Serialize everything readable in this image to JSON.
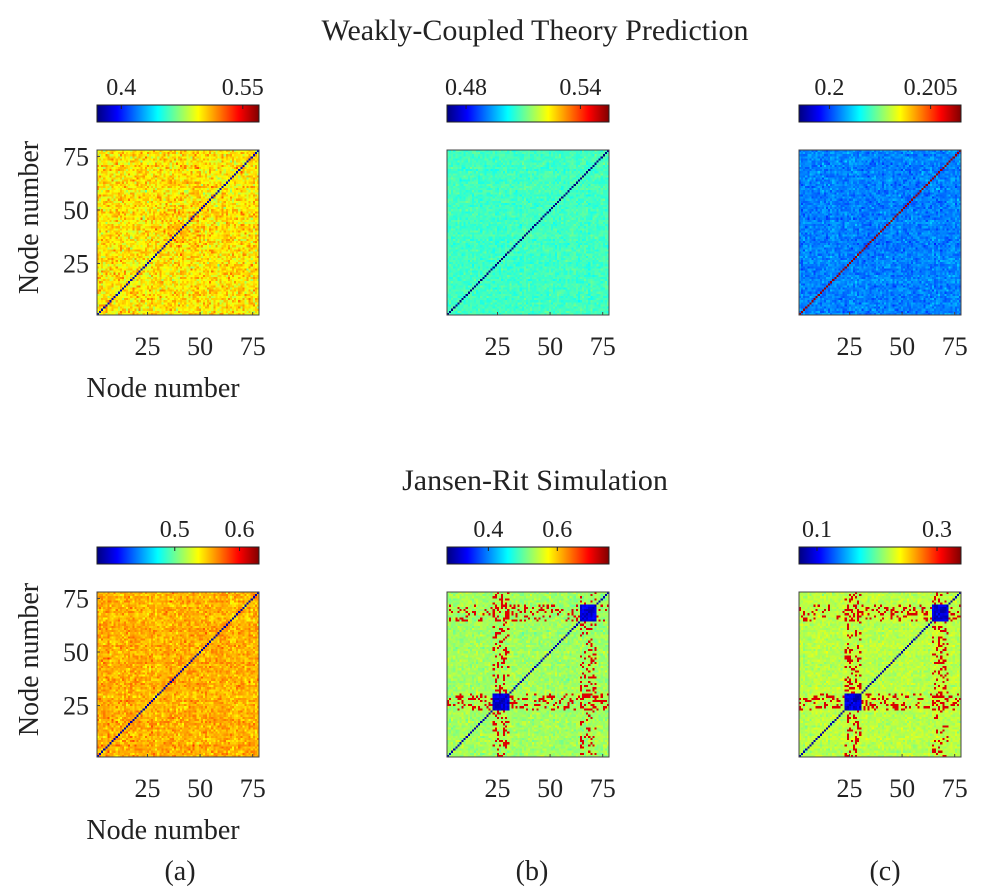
{
  "figure": {
    "row_titles": [
      "Weakly-Coupled Theory Prediction",
      "Jansen-Rit Simulation"
    ],
    "panel_labels": [
      "(a)",
      "(b)",
      "(c)"
    ],
    "axis_label": "Node number",
    "colormap": "jet",
    "colormap_stops": [
      "#00007f",
      "#0000ff",
      "#0080ff",
      "#00ffff",
      "#80ff80",
      "#ffff00",
      "#ff8000",
      "#ff0000",
      "#7f0000"
    ],
    "panel_border_color": "#444444"
  },
  "chart_data": [
    {
      "type": "heatmap",
      "row": 0,
      "col": 0,
      "x_ticks": [
        25,
        50,
        75
      ],
      "y_ticks": [
        25,
        50,
        75
      ],
      "xlim": [
        1,
        78
      ],
      "ylim": [
        1,
        78
      ],
      "colorbar": {
        "ticks": [
          0.4,
          0.55
        ],
        "range": [
          0.37,
          0.57
        ]
      },
      "xlabel": "Node number",
      "ylabel": "Node number",
      "pattern": {
        "base": 0.5,
        "noise": 0.035,
        "diagonal": 0.38,
        "blocks": []
      }
    },
    {
      "type": "heatmap",
      "row": 0,
      "col": 1,
      "x_ticks": [
        25,
        50,
        75
      ],
      "y_ticks": [],
      "xlim": [
        1,
        78
      ],
      "ylim": [
        1,
        78
      ],
      "colorbar": {
        "ticks": [
          0.48,
          0.54
        ],
        "range": [
          0.47,
          0.555
        ]
      },
      "xlabel": "",
      "ylabel": "",
      "pattern": {
        "base": 0.507,
        "noise": 0.006,
        "diagonal": 0.47,
        "blocks": []
      }
    },
    {
      "type": "heatmap",
      "row": 0,
      "col": 2,
      "x_ticks": [
        25,
        50,
        75
      ],
      "y_ticks": [],
      "xlim": [
        1,
        78
      ],
      "ylim": [
        1,
        78
      ],
      "colorbar": {
        "ticks": [
          0.2,
          0.205
        ],
        "range": [
          0.1985,
          0.2065
        ]
      },
      "xlabel": "",
      "ylabel": "",
      "pattern": {
        "base": 0.2005,
        "noise": 0.0008,
        "diagonal": 0.2063,
        "blocks": []
      }
    },
    {
      "type": "heatmap",
      "row": 1,
      "col": 0,
      "x_ticks": [
        25,
        50,
        75
      ],
      "y_ticks": [
        25,
        50,
        75
      ],
      "xlim": [
        1,
        78
      ],
      "ylim": [
        1,
        78
      ],
      "colorbar": {
        "ticks": [
          0.5,
          0.6
        ],
        "range": [
          0.38,
          0.63
        ]
      },
      "xlabel": "Node number",
      "ylabel": "Node number",
      "pattern": {
        "base": 0.555,
        "noise": 0.03,
        "diagonal": 0.39,
        "blocks": []
      }
    },
    {
      "type": "heatmap",
      "row": 1,
      "col": 1,
      "x_ticks": [
        25,
        50,
        75
      ],
      "y_ticks": [],
      "xlim": [
        1,
        78
      ],
      "ylim": [
        1,
        78
      ],
      "colorbar": {
        "ticks": [
          0.4,
          0.6
        ],
        "range": [
          0.28,
          0.75
        ]
      },
      "xlabel": "",
      "ylabel": "",
      "pattern": {
        "base": 0.53,
        "noise": 0.04,
        "diagonal": 0.3,
        "blocks": [
          [
            22,
            29
          ],
          [
            64,
            71
          ]
        ]
      }
    },
    {
      "type": "heatmap",
      "row": 1,
      "col": 2,
      "x_ticks": [
        25,
        50,
        75
      ],
      "y_ticks": [],
      "xlim": [
        1,
        78
      ],
      "ylim": [
        1,
        78
      ],
      "colorbar": {
        "ticks": [
          0.1,
          0.3
        ],
        "range": [
          0.07,
          0.34
        ]
      },
      "xlabel": "",
      "ylabel": "",
      "pattern": {
        "base": 0.22,
        "noise": 0.02,
        "diagonal": 0.08,
        "blocks": [
          [
            22,
            29
          ],
          [
            64,
            71
          ]
        ]
      }
    }
  ]
}
